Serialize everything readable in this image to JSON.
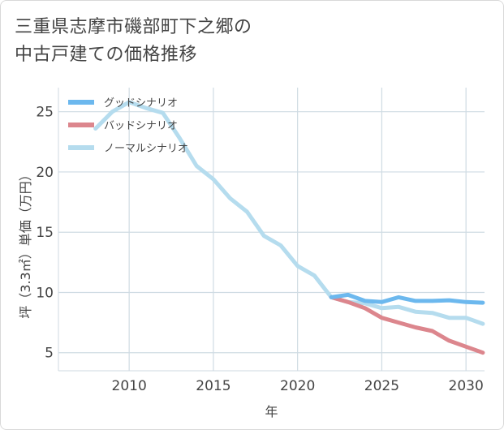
{
  "title": {
    "line1": "三重県志摩市磯部町下之郷の",
    "line2": "中古戸建ての価格推移"
  },
  "chart_data": {
    "type": "line",
    "xlabel": "年",
    "ylabel": "坪（3.3㎡）単価（万円）",
    "xlim": [
      2005.8,
      2031.1
    ],
    "ylim": [
      3.5,
      27
    ],
    "x_ticks": [
      2010,
      2015,
      2020,
      2025,
      2030
    ],
    "y_ticks": [
      5,
      10,
      15,
      20,
      25
    ],
    "grid": true,
    "legend_position": "top-left",
    "series": [
      {
        "name": "グッドシナリオ",
        "color": "#6cb8ee",
        "points": [
          [
            2022,
            9.6
          ],
          [
            2023,
            9.8
          ],
          [
            2024,
            9.3
          ],
          [
            2025,
            9.2
          ],
          [
            2026,
            9.6
          ],
          [
            2027,
            9.3
          ],
          [
            2028,
            9.3
          ],
          [
            2029,
            9.35
          ],
          [
            2030,
            9.2
          ],
          [
            2031,
            9.15
          ]
        ]
      },
      {
        "name": "バッドシナリオ",
        "color": "#dc868d",
        "points": [
          [
            2022,
            9.6
          ],
          [
            2023,
            9.2
          ],
          [
            2024,
            8.7
          ],
          [
            2025,
            7.9
          ],
          [
            2026,
            7.5
          ],
          [
            2027,
            7.1
          ],
          [
            2028,
            6.8
          ],
          [
            2029,
            6.0
          ],
          [
            2030,
            5.5
          ],
          [
            2031,
            5.0
          ]
        ]
      },
      {
        "name": "ノーマルシナリオ",
        "color": "#b5dcee",
        "points": [
          [
            2008,
            23.6
          ],
          [
            2009,
            25.0
          ],
          [
            2010,
            25.8
          ],
          [
            2011,
            25.3
          ],
          [
            2012,
            24.9
          ],
          [
            2013,
            22.8
          ],
          [
            2014,
            20.5
          ],
          [
            2015,
            19.4
          ],
          [
            2016,
            17.8
          ],
          [
            2017,
            16.7
          ],
          [
            2018,
            14.7
          ],
          [
            2019,
            13.9
          ],
          [
            2020,
            12.2
          ],
          [
            2021,
            11.4
          ],
          [
            2022,
            9.6
          ],
          [
            2023,
            9.2
          ],
          [
            2024,
            9.1
          ],
          [
            2025,
            8.7
          ],
          [
            2026,
            8.8
          ],
          [
            2027,
            8.4
          ],
          [
            2028,
            8.3
          ],
          [
            2029,
            7.9
          ],
          [
            2030,
            7.9
          ],
          [
            2031,
            7.4
          ]
        ]
      }
    ]
  }
}
